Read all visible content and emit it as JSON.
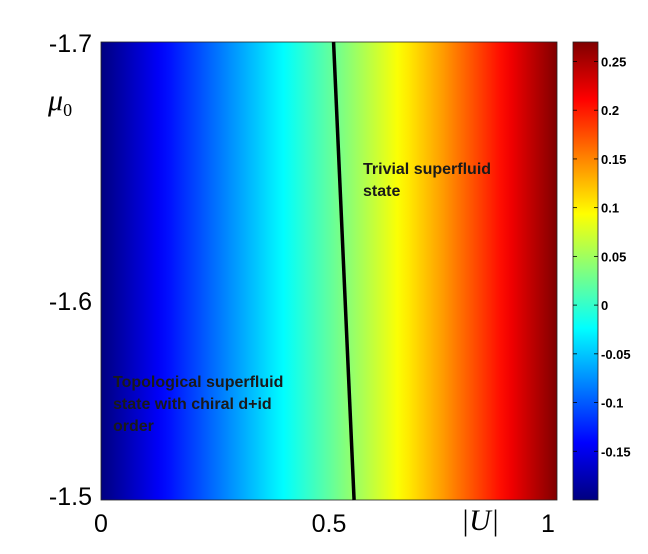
{
  "chart_data": {
    "type": "heatmap",
    "x_label": "|U|",
    "y_label_symbol": "μ",
    "y_label_subscript": "0",
    "x_range": [
      0,
      1
    ],
    "y_range": [
      -1.7,
      -1.5
    ],
    "x_ticks": [
      "0",
      "0.5",
      "1"
    ],
    "y_ticks": [
      "-1.7",
      "-1.6",
      "-1.5"
    ],
    "colormap": "jet",
    "color_range": [
      -0.2,
      0.27
    ],
    "colorbar_ticks": [
      "0.25",
      "0.2",
      "0.15",
      "0.1",
      "0.05",
      "0",
      "-0.05",
      "-0.1",
      "-0.15"
    ],
    "colorbar_tick_values": [
      0.25,
      0.2,
      0.15,
      0.1,
      0.05,
      0,
      -0.05,
      -0.1,
      -0.15
    ],
    "field_note_values": {
      "x": [
        0,
        0.25,
        0.5,
        0.75,
        1
      ],
      "z": [
        -0.2,
        -0.09,
        0.02,
        0.14,
        0.27
      ]
    },
    "phase_boundary": [
      {
        "U": 0.51,
        "mu0": -1.7
      },
      {
        "U": 0.555,
        "mu0": -1.5
      }
    ],
    "regions": [
      {
        "lines": [
          "Trivial superfluid",
          "state"
        ]
      },
      {
        "lines": [
          "Topological superfluid",
          "state with chiral d+id",
          "order"
        ]
      }
    ]
  }
}
